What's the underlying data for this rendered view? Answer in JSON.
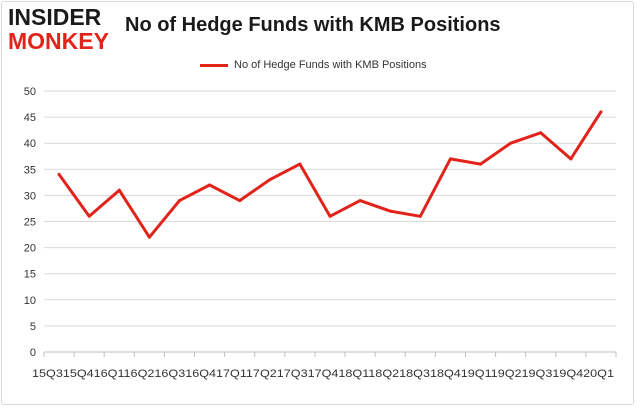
{
  "logo": {
    "line1": "INSIDER",
    "line2": "MONKEY"
  },
  "chart_data": {
    "type": "line",
    "title": "No of Hedge Funds with KMB Positions",
    "legend": {
      "position": "top-center"
    },
    "grid": true,
    "ylim": [
      0,
      50
    ],
    "yticks": [
      0,
      5,
      10,
      15,
      20,
      25,
      30,
      35,
      40,
      45,
      50
    ],
    "categories": [
      "2015Q3",
      "2015Q4",
      "2016Q1",
      "2016Q2",
      "2016Q3",
      "2016Q4",
      "2017Q1",
      "2017Q2",
      "2017Q3",
      "2017Q4",
      "2018Q1",
      "2018Q2",
      "2018Q3",
      "2018Q4",
      "2019Q1",
      "2019Q2",
      "2019Q3",
      "2019Q4",
      "2020Q1"
    ],
    "xtick_text": "15Q315Q416Q116Q216Q316Q417Q117Q217Q317Q418Q118Q218Q318Q419Q119Q219Q319Q420Q1",
    "series": [
      {
        "name": "No of Hedge Funds with KMB Positions",
        "color": "#e2231a",
        "values": [
          34,
          26,
          31,
          22,
          29,
          32,
          29,
          33,
          36,
          26,
          29,
          27,
          26,
          37,
          36,
          40,
          42,
          37,
          46
        ]
      }
    ]
  }
}
